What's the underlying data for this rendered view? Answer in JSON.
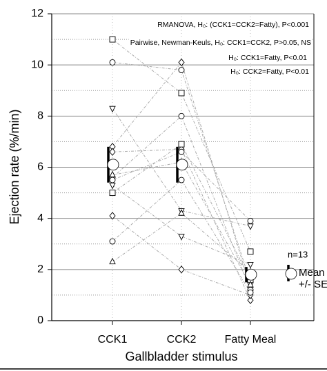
{
  "chart_data": {
    "type": "paired-scatter",
    "y_label": "Ejection rate (%/min)",
    "x_label": "Gallbladder stimulus",
    "categories": [
      "CCK1",
      "CCK2",
      "Fatty Meal"
    ],
    "ylim": [
      0,
      12
    ],
    "yticks": [
      0,
      2,
      4,
      6,
      8,
      10,
      12
    ],
    "minor_gridlines": [
      1,
      3,
      5,
      7,
      9,
      11
    ],
    "grid": true,
    "series": [
      {
        "marker": "square",
        "values": [
          11.0,
          8.9,
          2.7
        ]
      },
      {
        "marker": "circle",
        "values": [
          10.1,
          9.8,
          1.5
        ]
      },
      {
        "marker": "triangle-down",
        "values": [
          8.3,
          4.3,
          3.7
        ]
      },
      {
        "marker": "diamond",
        "values": [
          6.8,
          10.1,
          1.3
        ]
      },
      {
        "marker": "diamond",
        "values": [
          6.6,
          6.7,
          0.8
        ]
      },
      {
        "marker": "circle",
        "values": [
          5.6,
          8.0,
          1.2
        ]
      },
      {
        "marker": "circle",
        "values": [
          5.5,
          6.6,
          3.9
        ]
      },
      {
        "marker": "triangle-down",
        "values": [
          5.3,
          3.3,
          2.2
        ]
      },
      {
        "marker": "square",
        "values": [
          5.0,
          6.9,
          1.6
        ]
      },
      {
        "marker": "diamond",
        "values": [
          4.1,
          2.0,
          1.0
        ]
      },
      {
        "marker": "circle",
        "values": [
          3.1,
          5.5,
          1.1
        ]
      },
      {
        "marker": "triangle",
        "values": [
          2.3,
          4.2,
          1.9
        ]
      },
      {
        "marker": "triangle",
        "values": [
          5.7,
          6.2,
          1.4
        ]
      }
    ],
    "means": {
      "values": [
        6.1,
        6.1,
        1.8
      ],
      "errors": [
        0.7,
        0.7,
        0.3
      ]
    },
    "annotations": [
      "RMANOVA, H₀: (CCK1=CCK2=Fatty), P<0.001",
      "Pairwise, Newman-Keuls, H₀: CCK1=CCK2, P>0.05, NS",
      "H₀: CCK1=Fatty, P<0.01",
      "H₀: CCK2=Fatty, P<0.01"
    ],
    "n_label": "n=13",
    "mean_legend": [
      "Mean",
      "+/- SE"
    ]
  }
}
